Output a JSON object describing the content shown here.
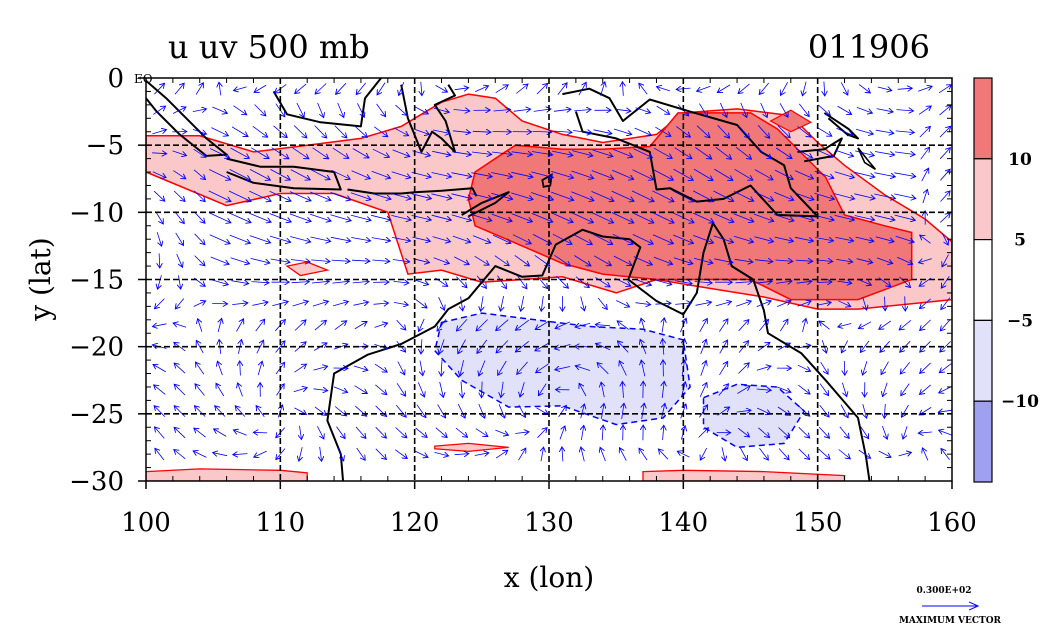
{
  "chart_data": {
    "type": "heatmap",
    "title": "u uv 500 mb",
    "date_label": "011906",
    "xlabel": "x (lon)",
    "ylabel": "y (lat)",
    "xlim": [
      100,
      160
    ],
    "ylim": [
      -30,
      0
    ],
    "x_ticks": [
      100,
      110,
      120,
      130,
      140,
      150,
      160
    ],
    "y_ticks": [
      0,
      -5,
      -10,
      -15,
      -20,
      -25,
      -30
    ],
    "y_tick_labels": [
      "0",
      "−5",
      "−10",
      "−15",
      "−20",
      "−25",
      "−30"
    ],
    "eq_label": "EQ",
    "grid": true,
    "colorbar": {
      "labels": [
        "10",
        "5",
        "−5",
        "−10"
      ],
      "bins": [
        {
          "range": "above 10",
          "color": "#f07878"
        },
        {
          "range": "5 to 10",
          "color": "#fac8c8"
        },
        {
          "range": "-5 to 5",
          "color": "#ffffff"
        },
        {
          "range": "-10 to -5",
          "color": "#e1e1fa"
        },
        {
          "range": "below -10",
          "color": "#a0a0f0"
        }
      ]
    },
    "vector_key": {
      "value": "0.300E+02",
      "label": "MAXIMUM VECTOR"
    },
    "shaded_regions": [
      {
        "level": "above 10",
        "lon_range": [
          125,
          157
        ],
        "lat_range": [
          -17,
          -3
        ]
      },
      {
        "level": "5 to 10",
        "lon_range": [
          100,
          160
        ],
        "lat_range": [
          -18,
          -2
        ]
      },
      {
        "level": "-10 to -5",
        "lon_range": [
          121,
          149
        ],
        "lat_range": [
          -28,
          -18
        ]
      }
    ],
    "colors": {
      "positive_contour": "#ff0000",
      "negative_contour": "#0000ff",
      "vectors": "#0000ff",
      "coastline": "#000000"
    }
  }
}
